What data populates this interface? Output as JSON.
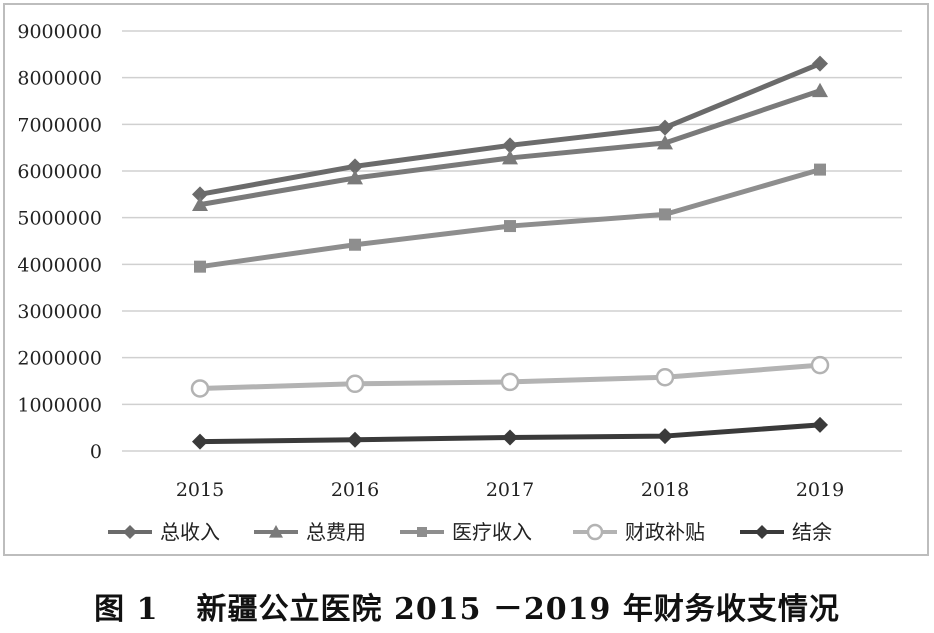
{
  "chart_data": {
    "type": "line",
    "title": "",
    "xlabel": "",
    "ylabel": "",
    "categories": [
      "2015",
      "2016",
      "2017",
      "2018",
      "2019"
    ],
    "ylim": [
      0,
      9000000
    ],
    "yticks": [
      "0",
      "1000000",
      "2000000",
      "3000000",
      "4000000",
      "5000000",
      "6000000",
      "7000000",
      "8000000",
      "9000000"
    ],
    "grid": true,
    "legend_position": "bottom",
    "series": [
      {
        "name": "总收入",
        "marker": "diamond",
        "color": "#6b6b6b",
        "values": [
          5500000,
          6100000,
          6550000,
          6930000,
          8300000
        ]
      },
      {
        "name": "总费用",
        "marker": "triangle",
        "color": "#7a7a7a",
        "values": [
          5280000,
          5850000,
          6280000,
          6600000,
          7720000
        ]
      },
      {
        "name": "医疗收入",
        "marker": "square",
        "color": "#8e8e8e",
        "values": [
          3950000,
          4420000,
          4820000,
          5070000,
          6030000
        ]
      },
      {
        "name": "财政补贴",
        "marker": "circle-open",
        "color": "#b3b3b3",
        "values": [
          1340000,
          1440000,
          1480000,
          1580000,
          1840000
        ]
      },
      {
        "name": "结余",
        "marker": "diamond",
        "color": "#3a3a3a",
        "values": [
          200000,
          240000,
          290000,
          320000,
          560000
        ]
      }
    ]
  },
  "caption": {
    "figure_number": "图 1",
    "text": "新疆公立医院 2015 －2019 年财务收支情况"
  }
}
